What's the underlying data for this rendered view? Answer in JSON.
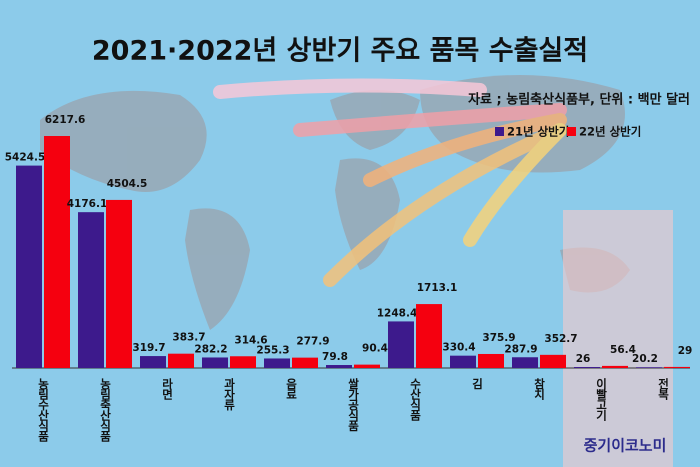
{
  "chart_data": {
    "type": "bar",
    "title": "2021·2022년 상반기 주요 품목 수출실적",
    "source": "자료 ; 농림축산식품부, 단위 : 백만 달러",
    "watermark": "중기이코노미",
    "categories": [
      "농림수산식품",
      "농림축산식품",
      "라면",
      "과자류",
      "음료",
      "쌀가공식품",
      "수산식품",
      "김",
      "참치",
      "이빨고기",
      "전복"
    ],
    "series": [
      {
        "name": "21년 상반기",
        "color": "#3d1a8c",
        "values": [
          5424.5,
          4176.1,
          319.7,
          282.2,
          255.3,
          79.8,
          1248.4,
          330.4,
          287.9,
          26,
          20.2
        ]
      },
      {
        "name": "22년 상반기",
        "color": "#f5000f",
        "values": [
          6217.6,
          4504.5,
          383.7,
          314.6,
          277.9,
          90.4,
          1713.1,
          375.9,
          352.7,
          56.4,
          29
        ]
      }
    ]
  }
}
